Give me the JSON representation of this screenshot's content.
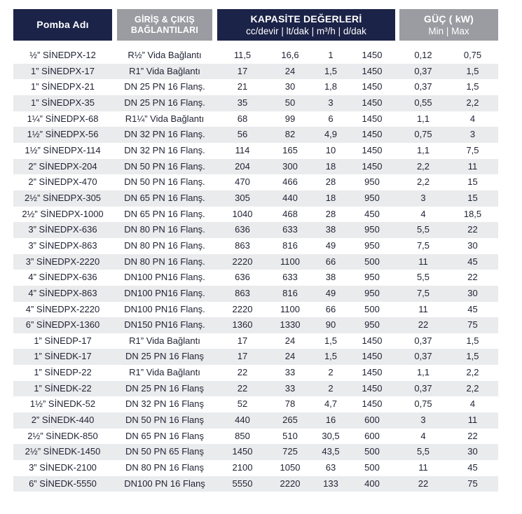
{
  "headers": {
    "name": "Pomba Adı",
    "connection_line1": "GİRİŞ & ÇIKIŞ",
    "connection_line2": "BAĞLANTILARI",
    "capacity_title": "KAPASİTE DEĞERLERİ",
    "capacity_units": "cc/devir | lt/dak | m³/h | d/dak",
    "power_title": "GÜÇ ( kW)",
    "power_units": "Min  |  Max"
  },
  "rows": [
    {
      "name": "½” SİNEDPX-12",
      "conn": "R½” Vida Bağlantı",
      "cc": "11,5",
      "lt": "16,6",
      "m3": "1",
      "rpm": "1450",
      "min": "0,12",
      "max": "0,75"
    },
    {
      "name": "1” SİNEDPX-17",
      "conn": "R1” Vida Bağlantı",
      "cc": "17",
      "lt": "24",
      "m3": "1,5",
      "rpm": "1450",
      "min": "0,37",
      "max": "1,5"
    },
    {
      "name": "1” SİNEDPX-21",
      "conn": "DN 25 PN 16 Flanş.",
      "cc": "21",
      "lt": "30",
      "m3": "1,8",
      "rpm": "1450",
      "min": "0,37",
      "max": "1,5"
    },
    {
      "name": "1” SİNEDPX-35",
      "conn": "DN 25 PN 16 Flanş.",
      "cc": "35",
      "lt": "50",
      "m3": "3",
      "rpm": "1450",
      "min": "0,55",
      "max": "2,2"
    },
    {
      "name": "1¼” SİNEDPX-68",
      "conn": "R1¼” Vida Bağlantı",
      "cc": "68",
      "lt": "99",
      "m3": "6",
      "rpm": "1450",
      "min": "1,1",
      "max": "4"
    },
    {
      "name": "1½” SİNEDPX-56",
      "conn": "DN 32 PN 16 Flanş.",
      "cc": "56",
      "lt": "82",
      "m3": "4,9",
      "rpm": "1450",
      "min": "0,75",
      "max": "3"
    },
    {
      "name": "1½” SİNEDPX-114",
      "conn": "DN 32 PN 16 Flanş.",
      "cc": "114",
      "lt": "165",
      "m3": "10",
      "rpm": "1450",
      "min": "1,1",
      "max": "7,5"
    },
    {
      "name": "2” SİNEDPX-204",
      "conn": "DN 50 PN 16 Flanş.",
      "cc": "204",
      "lt": "300",
      "m3": "18",
      "rpm": "1450",
      "min": "2,2",
      "max": "11"
    },
    {
      "name": "2” SİNEDPX-470",
      "conn": "DN 50 PN 16 Flanş.",
      "cc": "470",
      "lt": "466",
      "m3": "28",
      "rpm": "950",
      "min": "2,2",
      "max": "15"
    },
    {
      "name": "2½” SİNEDPX-305",
      "conn": "DN 65 PN 16 Flanş.",
      "cc": "305",
      "lt": "440",
      "m3": "18",
      "rpm": "950",
      "min": "3",
      "max": "15"
    },
    {
      "name": "2½” SİNEDPX-1000",
      "conn": "DN 65 PN 16 Flanş.",
      "cc": "1040",
      "lt": "468",
      "m3": "28",
      "rpm": "450",
      "min": "4",
      "max": "18,5"
    },
    {
      "name": "3” SİNEDPX-636",
      "conn": "DN 80 PN 16 Flanş.",
      "cc": "636",
      "lt": "633",
      "m3": "38",
      "rpm": "950",
      "min": "5,5",
      "max": "22"
    },
    {
      "name": "3” SİNEDPX-863",
      "conn": "DN 80 PN 16 Flanş.",
      "cc": "863",
      "lt": "816",
      "m3": "49",
      "rpm": "950",
      "min": "7,5",
      "max": "30"
    },
    {
      "name": "3” SİNEDPX-2220",
      "conn": "DN 80 PN 16 Flanş.",
      "cc": "2220",
      "lt": "1100",
      "m3": "66",
      "rpm": "500",
      "min": "11",
      "max": "45"
    },
    {
      "name": "4” SİNEDPX-636",
      "conn": "DN100 PN16 Flanş.",
      "cc": "636",
      "lt": "633",
      "m3": "38",
      "rpm": "950",
      "min": "5,5",
      "max": "22"
    },
    {
      "name": "4” SİNEDPX-863",
      "conn": "DN100 PN16 Flanş.",
      "cc": "863",
      "lt": "816",
      "m3": "49",
      "rpm": "950",
      "min": "7,5",
      "max": "30"
    },
    {
      "name": "4” SİNEDPX-2220",
      "conn": "DN100 PN16 Flanş.",
      "cc": "2220",
      "lt": "1100",
      "m3": "66",
      "rpm": "500",
      "min": "11",
      "max": "45"
    },
    {
      "name": "6” SİNEDPX-1360",
      "conn": "DN150 PN16 Flanş.",
      "cc": "1360",
      "lt": "1330",
      "m3": "90",
      "rpm": "950",
      "min": "22",
      "max": "75"
    },
    {
      "name": "1” SİNEDP-17",
      "conn": "R1” Vida Bağlantı",
      "cc": "17",
      "lt": "24",
      "m3": "1,5",
      "rpm": "1450",
      "min": "0,37",
      "max": "1,5"
    },
    {
      "name": "1” SİNEDK-17",
      "conn": "DN 25 PN 16 Flanş",
      "cc": "17",
      "lt": "24",
      "m3": "1,5",
      "rpm": "1450",
      "min": "0,37",
      "max": "1,5"
    },
    {
      "name": "1” SİNEDP-22",
      "conn": "R1” Vida Bağlantı",
      "cc": "22",
      "lt": "33",
      "m3": "2",
      "rpm": "1450",
      "min": "1,1",
      "max": "2,2"
    },
    {
      "name": "1” SİNEDK-22",
      "conn": "DN 25 PN 16 Flanş",
      "cc": "22",
      "lt": "33",
      "m3": "2",
      "rpm": "1450",
      "min": "0,37",
      "max": "2,2"
    },
    {
      "name": "1½” SİNEDK-52",
      "conn": "DN 32 PN 16 Flanş",
      "cc": "52",
      "lt": "78",
      "m3": "4,7",
      "rpm": "1450",
      "min": "0,75",
      "max": "4"
    },
    {
      "name": "2” SİNEDK-440",
      "conn": "DN 50 PN 16 Flanş",
      "cc": "440",
      "lt": "265",
      "m3": "16",
      "rpm": "600",
      "min": "3",
      "max": "11"
    },
    {
      "name": "2½” SİNEDK-850",
      "conn": "DN 65 PN 16 Flanş",
      "cc": "850",
      "lt": "510",
      "m3": "30,5",
      "rpm": "600",
      "min": "4",
      "max": "22"
    },
    {
      "name": "2½” SİNEDK-1450",
      "conn": "DN 50 PN 65 Flanş",
      "cc": "1450",
      "lt": "725",
      "m3": "43,5",
      "rpm": "500",
      "min": "5,5",
      "max": "30"
    },
    {
      "name": "3” SİNEDK-2100",
      "conn": "DN 80 PN 16 Flanş",
      "cc": "2100",
      "lt": "1050",
      "m3": "63",
      "rpm": "500",
      "min": "11",
      "max": "45"
    },
    {
      "name": "6” SİNEDK-5550",
      "conn": "DN100 PN 16 Flanş",
      "cc": "5550",
      "lt": "2220",
      "m3": "133",
      "rpm": "400",
      "min": "22",
      "max": "75"
    }
  ]
}
